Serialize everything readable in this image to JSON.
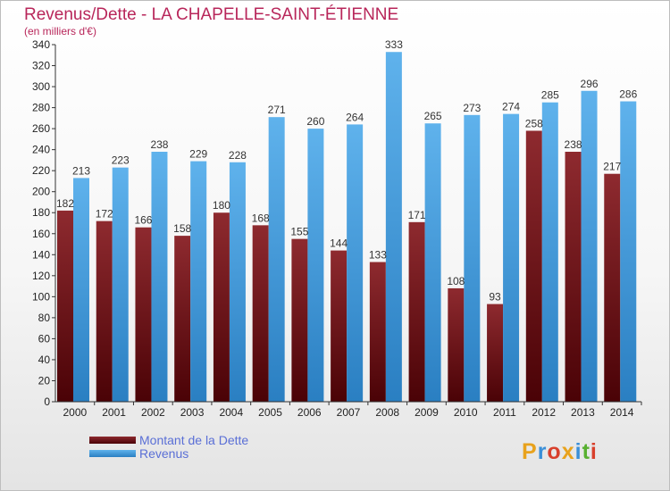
{
  "title": "Revenus/Dette - LA CHAPELLE-SAINT-ÉTIENNE",
  "subtitle": "(en milliers d'€)",
  "legend": {
    "debt_label": "Montant de la Dette",
    "revenue_label": "Revenus"
  },
  "logo": "Proxiti",
  "colors": {
    "debt": "#7a1a1f",
    "revenue": "#3b97dd",
    "title": "#b8265a",
    "legend_text": "#5a6fd6"
  },
  "chart_data": {
    "type": "bar",
    "title": "Revenus/Dette - LA CHAPELLE-SAINT-ÉTIENNE",
    "subtitle": "(en milliers d'€)",
    "categories": [
      "2000",
      "2001",
      "2002",
      "2003",
      "2004",
      "2005",
      "2006",
      "2007",
      "2008",
      "2009",
      "2010",
      "2011",
      "2012",
      "2013",
      "2014"
    ],
    "series": [
      {
        "name": "Montant de la Dette",
        "values": [
          182,
          172,
          166,
          158,
          180,
          168,
          155,
          144,
          133,
          171,
          108,
          93,
          258,
          238,
          217
        ]
      },
      {
        "name": "Revenus",
        "values": [
          213,
          223,
          238,
          229,
          228,
          271,
          260,
          264,
          333,
          265,
          273,
          274,
          285,
          296,
          286
        ]
      }
    ],
    "ylim": [
      0,
      340
    ],
    "ytick_step": 20,
    "grid": false,
    "legend_position": "bottom-left"
  }
}
